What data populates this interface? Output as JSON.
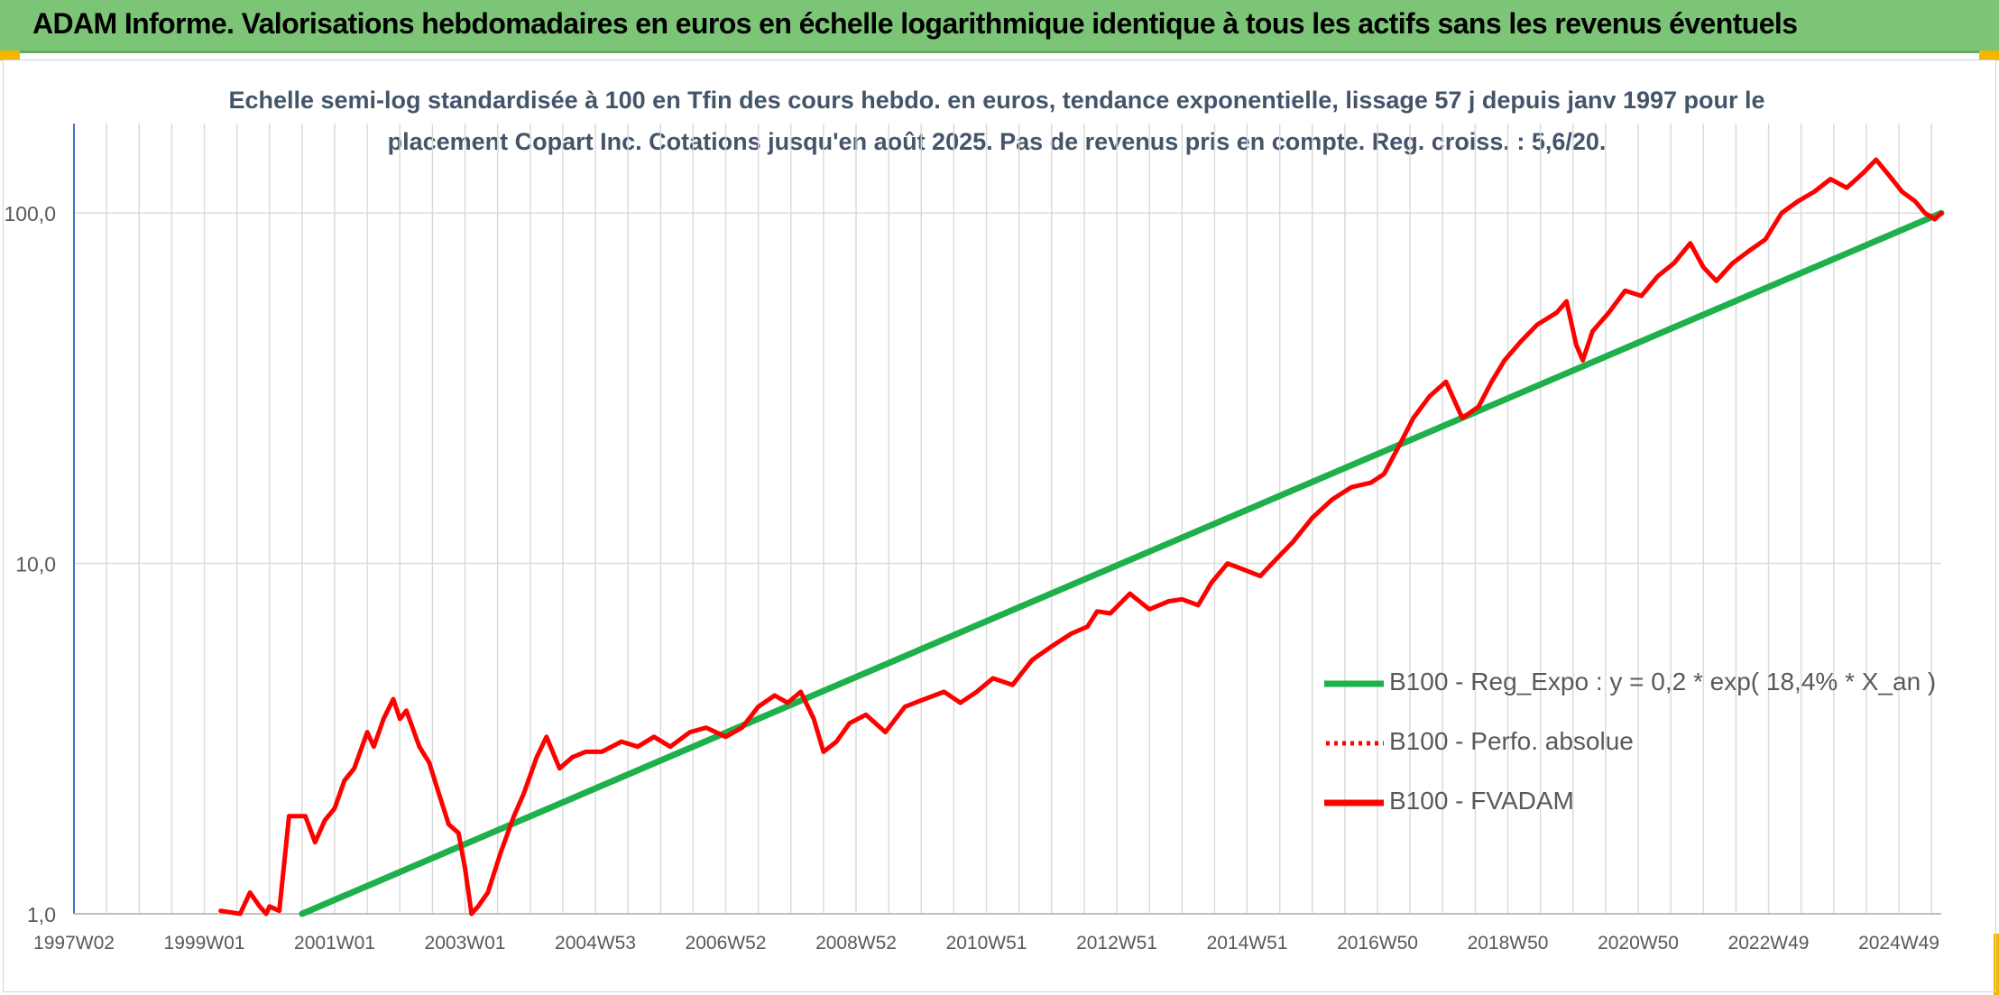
{
  "header": {
    "title": "ADAM Informe. Valorisations hebdomadaires en euros en échelle logarithmique identique à tous les actifs sans les revenus éventuels"
  },
  "chart_data": {
    "type": "line",
    "title": "Echelle semi-log standardisée à 100 en Tfin des cours hebdo. en euros, tendance exponentielle, lissage 57 j depuis janv 1997 pour le placement Copart Inc. Cotations jusqu'en août 2025. Pas de revenus pris en compte. Reg. croiss. : 5,6/20.",
    "title_lines": [
      "Echelle semi-log standardisée à 100 en Tfin des cours hebdo. en euros, tendance exponentielle, lissage 57 j depuis janv 1997 pour le",
      "placement Copart Inc. Cotations jusqu'en août 2025. Pas de revenus pris en compte. Reg. croiss. : 5,6/20."
    ],
    "y_scale": "log",
    "ylim": [
      1,
      180
    ],
    "y_ticks": [
      1,
      10,
      100
    ],
    "y_tick_labels": [
      "1,0",
      "10,0",
      "100,0"
    ],
    "x_range": [
      1997.0,
      2025.65
    ],
    "x_ticks": [
      1997.0,
      1999.0,
      2001.0,
      2003.0,
      2005.0,
      2007.0,
      2009.0,
      2011.0,
      2013.0,
      2015.0,
      2017.0,
      2019.0,
      2021.0,
      2023.0,
      2025.0
    ],
    "x_tick_labels": [
      "1997W02",
      "1999W01",
      "2001W01",
      "2003W01",
      "2004W53",
      "2006W52",
      "2008W52",
      "2010W51",
      "2012W51",
      "2014W51",
      "2016W50",
      "2018W50",
      "2020W50",
      "2022W49",
      "2024W49"
    ],
    "grid": true,
    "legend_position": "right",
    "colors": {
      "trend": "#1db04b",
      "fvadam": "#ff0000",
      "grid": "#d9d9d9",
      "axis": "#4472c4",
      "subtitle": "#44546a",
      "header": "#7cc576"
    },
    "series": [
      {
        "name": "B100 - Reg_Expo : y = 0,2 * exp( 18,4% *  X_an )",
        "style": "solid",
        "color": "#1db04b",
        "x": [
          2000.5,
          2025.65
        ],
        "y": [
          1.0,
          100.0
        ]
      },
      {
        "name": "B100 - Perfo. absolue",
        "style": "dotted",
        "color": "#ff0000",
        "x": [],
        "y": []
      },
      {
        "name": "B100 - FVADAM",
        "style": "solid",
        "color": "#ff0000",
        "x": [
          1999.25,
          1999.4,
          1999.55,
          1999.7,
          1999.85,
          1999.95,
          2000.0,
          2000.15,
          2000.3,
          2000.55,
          2000.7,
          2000.85,
          2001.0,
          2001.15,
          2001.3,
          2001.5,
          2001.6,
          2001.75,
          2001.9,
          2002.0,
          2002.1,
          2002.3,
          2002.45,
          2002.6,
          2002.75,
          2002.9,
          2003.0,
          2003.1,
          2003.2,
          2003.35,
          2003.55,
          2003.75,
          2003.9,
          2004.1,
          2004.25,
          2004.45,
          2004.65,
          2004.85,
          2005.1,
          2005.4,
          2005.65,
          2005.9,
          2006.15,
          2006.45,
          2006.7,
          2007.0,
          2007.25,
          2007.5,
          2007.75,
          2007.95,
          2008.15,
          2008.35,
          2008.5,
          2008.7,
          2008.9,
          2009.15,
          2009.45,
          2009.75,
          2010.05,
          2010.35,
          2010.6,
          2010.85,
          2011.1,
          2011.4,
          2011.7,
          2012.0,
          2012.3,
          2012.55,
          2012.7,
          2012.9,
          2013.2,
          2013.5,
          2013.8,
          2014.0,
          2014.25,
          2014.45,
          2014.7,
          2014.95,
          2015.2,
          2015.45,
          2015.7,
          2016.0,
          2016.3,
          2016.6,
          2016.9,
          2017.1,
          2017.35,
          2017.55,
          2017.8,
          2018.05,
          2018.3,
          2018.55,
          2018.75,
          2018.95,
          2019.2,
          2019.45,
          2019.75,
          2019.9,
          2020.05,
          2020.15,
          2020.3,
          2020.55,
          2020.8,
          2021.05,
          2021.3,
          2021.55,
          2021.8,
          2022.0,
          2022.2,
          2022.45,
          2022.7,
          2022.95,
          2023.2,
          2023.45,
          2023.7,
          2023.95,
          2024.2,
          2024.45,
          2024.65,
          2024.85,
          2025.05,
          2025.25,
          2025.4,
          2025.55,
          2025.65
        ],
        "y": [
          1.02,
          1.01,
          1.0,
          1.15,
          1.05,
          1.0,
          1.05,
          1.02,
          1.9,
          1.9,
          1.6,
          1.85,
          2.0,
          2.4,
          2.6,
          3.3,
          3.0,
          3.6,
          4.1,
          3.6,
          3.8,
          3.0,
          2.7,
          2.2,
          1.8,
          1.7,
          1.35,
          1.0,
          1.05,
          1.15,
          1.5,
          1.9,
          2.2,
          2.8,
          3.2,
          2.6,
          2.8,
          2.9,
          2.9,
          3.1,
          3.0,
          3.2,
          3.0,
          3.3,
          3.4,
          3.2,
          3.4,
          3.9,
          4.2,
          4.0,
          4.3,
          3.6,
          2.9,
          3.1,
          3.5,
          3.7,
          3.3,
          3.9,
          4.1,
          4.3,
          4.0,
          4.3,
          4.7,
          4.5,
          5.3,
          5.8,
          6.3,
          6.6,
          7.3,
          7.2,
          8.2,
          7.4,
          7.8,
          7.9,
          7.6,
          8.8,
          10.0,
          9.6,
          9.2,
          10.3,
          11.5,
          13.5,
          15.2,
          16.5,
          17.0,
          18.0,
          22.0,
          26.0,
          30.0,
          33.0,
          26.0,
          28.0,
          33.0,
          38.0,
          43.0,
          48.0,
          52.0,
          56.0,
          42.0,
          38.0,
          46.0,
          52.0,
          60.0,
          58.0,
          66.0,
          72.0,
          82.0,
          70.0,
          64.0,
          72.0,
          78.0,
          84.0,
          100.0,
          108.0,
          115.0,
          125.0,
          118.0,
          130.0,
          142.0,
          128.0,
          115.0,
          108.0,
          100.0,
          96.0,
          100.0
        ]
      }
    ]
  }
}
